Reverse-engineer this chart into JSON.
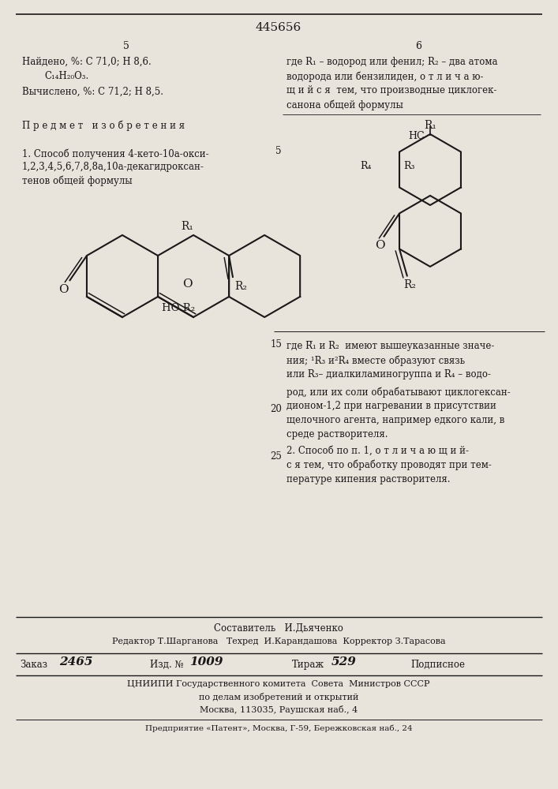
{
  "patent_number": "445656",
  "bg_color": "#e8e4dc",
  "text_color": "#1a1818",
  "page_left": "5",
  "page_right": "6"
}
